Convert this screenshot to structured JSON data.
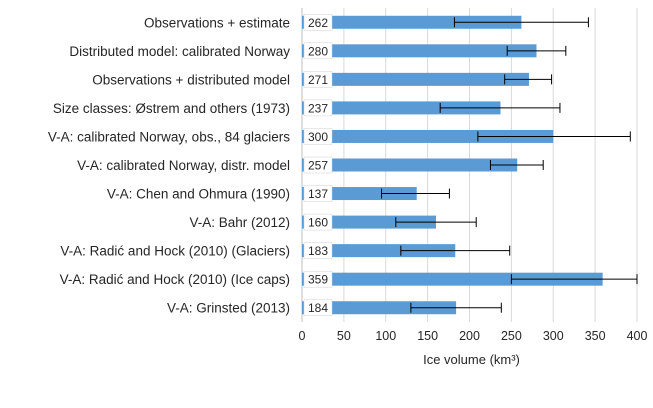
{
  "chart_data": {
    "type": "bar",
    "orientation": "horizontal",
    "categories": [
      "Observations + estimate",
      "Distributed model: calibrated Norway",
      "Observations + distributed model",
      "Size classes: Østrem and others (1973)",
      "V-A: calibrated Norway, obs., 84 glaciers",
      "V-A: calibrated Norway, distr. model",
      "V-A: Chen and Ohmura (1990)",
      "V-A: Bahr (2012)",
      "V-A: Radić and Hock (2010) (Glaciers)",
      "V-A: Radić and Hock (2010) (Ice caps)",
      "V-A: Grinsted (2013)"
    ],
    "values": [
      262,
      280,
      271,
      237,
      300,
      257,
      137,
      160,
      183,
      359,
      184
    ],
    "error_low": [
      182,
      245,
      242,
      165,
      210,
      225,
      95,
      112,
      118,
      250,
      130
    ],
    "error_high": [
      342,
      315,
      298,
      308,
      392,
      288,
      176,
      208,
      248,
      400,
      238
    ],
    "value_labels": [
      "262",
      "280",
      "271",
      "237",
      "300",
      "257",
      "137",
      "160",
      "183",
      "359",
      "184"
    ],
    "xlabel": "Ice volume (km³)",
    "ylabel": "",
    "title": "",
    "xlim": [
      0,
      400
    ],
    "xticks": [
      "0",
      "50",
      "100",
      "150",
      "200",
      "250",
      "300",
      "350",
      "400"
    ],
    "grid": "vertical",
    "bar_color": "#5b9bd5",
    "error_color": "#000000",
    "grid_color": "#d9d9d9"
  }
}
